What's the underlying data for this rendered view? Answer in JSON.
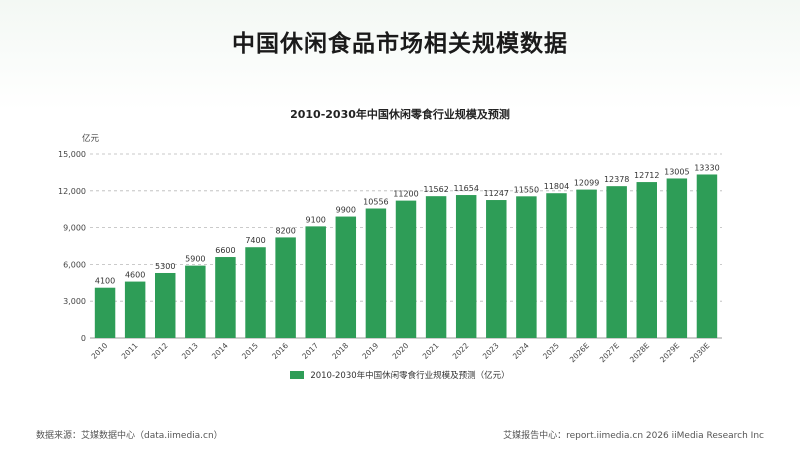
{
  "page": {
    "title": "中国休闲食品市场相关规模数据"
  },
  "chart_data": {
    "type": "bar",
    "title": "2010-2030年中国休闲零食行业规模及预测",
    "ylabel": "亿元",
    "xlabel": "",
    "ylim": [
      0,
      15000
    ],
    "yticks": [
      "0",
      "3,000",
      "6,000",
      "9,000",
      "12,000",
      "15,000"
    ],
    "ytick_values": [
      0,
      3000,
      6000,
      9000,
      12000,
      15000
    ],
    "grid": true,
    "legend_position": "bottom",
    "categories": [
      "2010",
      "2011",
      "2012",
      "2013",
      "2014",
      "2015",
      "2016",
      "2017",
      "2018",
      "2019",
      "2020",
      "2021",
      "2022",
      "2023",
      "2024",
      "2025",
      "2026E",
      "2027E",
      "2028E",
      "2029E",
      "2030E"
    ],
    "series": [
      {
        "name": "2010-2030年中国休闲零食行业规模及预测（亿元）",
        "color": "#2e9d57",
        "values": [
          4100,
          4600,
          5300,
          5900,
          6600,
          7400,
          8200,
          9100,
          9900,
          10556,
          11200,
          11562,
          11654,
          11247,
          11550,
          11804,
          12099,
          12378,
          12712,
          13005,
          13330
        ]
      }
    ]
  },
  "footer": {
    "source": "数据来源：艾媒数据中心（data.iimedia.cn）",
    "credit": "艾媒报告中心：report.iimedia.cn  2026 iiMedia Research Inc"
  }
}
